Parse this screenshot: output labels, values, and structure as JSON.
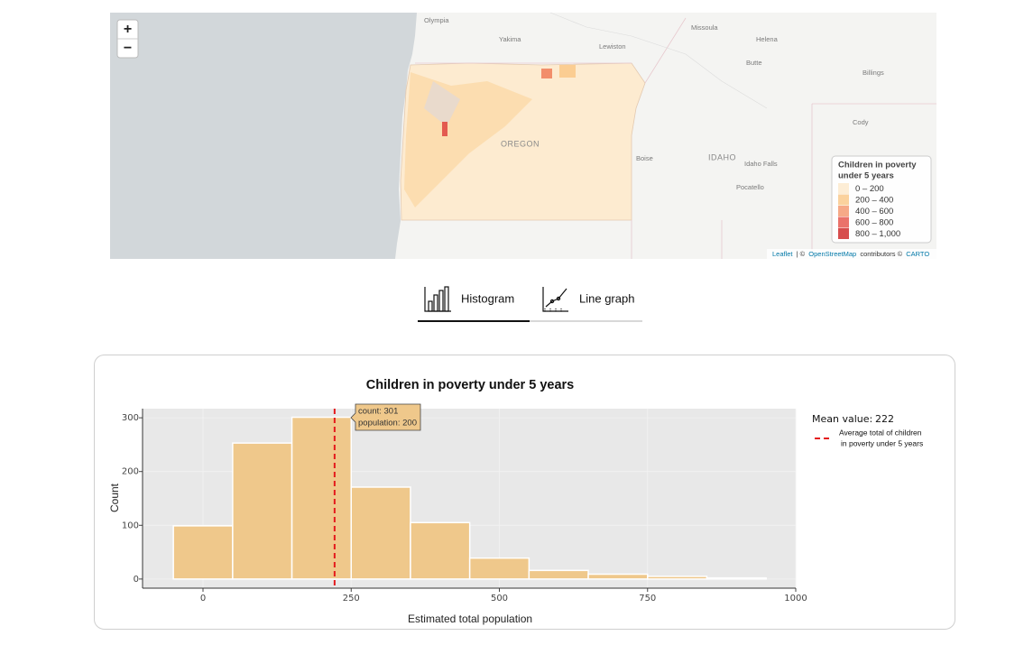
{
  "map": {
    "zoom_in": "+",
    "zoom_out": "−",
    "places": [
      "Olympia",
      "Yakima",
      "Lewiston",
      "Missoula",
      "Helena",
      "Butte",
      "Billings",
      "Cody",
      "OREGON",
      "IDAHO",
      "Idaho Falls",
      "Boise",
      "Pocatello"
    ],
    "legend": {
      "title_lines": [
        "Children in poverty",
        "under 5 years"
      ],
      "items": [
        {
          "label": "0 – 200",
          "color": "#fdebd0"
        },
        {
          "label": "200 – 400",
          "color": "#fbcd92"
        },
        {
          "label": "400 – 600",
          "color": "#f5a07a"
        },
        {
          "label": "600 – 800",
          "color": "#e8635a"
        },
        {
          "label": "800 – 1,000",
          "color": "#d33a3a"
        }
      ]
    },
    "attribution": [
      "Leaflet",
      "| ©",
      "OpenStreetMap",
      "contributors ©",
      "CARTO"
    ]
  },
  "tabs": [
    "Histogram",
    "Line graph"
  ],
  "chart_data": {
    "type": "histogram",
    "title": "Children in poverty under 5 years",
    "x_label": "Estimated total population",
    "y_label": "Count",
    "bins": [
      -50,
      50,
      150,
      250,
      350,
      450,
      550,
      650,
      750,
      850,
      950
    ],
    "counts": [
      99,
      253,
      301,
      171,
      105,
      39,
      16,
      9,
      5,
      2
    ],
    "color": "#efc88b",
    "xlim": [
      -102,
      1000
    ],
    "ylim": [
      -17,
      317
    ],
    "xticks": [
      0,
      250,
      500,
      750,
      1000
    ],
    "yticks": [
      0,
      100,
      200,
      300
    ],
    "grid": true,
    "mean": 222,
    "mean_color": "#e41a1c",
    "mean_label": "Mean value:",
    "mean_legend_lines": [
      "Average total of children",
      "in poverty under 5 years"
    ],
    "tooltip": [
      "count: 301",
      "population: 200"
    ]
  }
}
